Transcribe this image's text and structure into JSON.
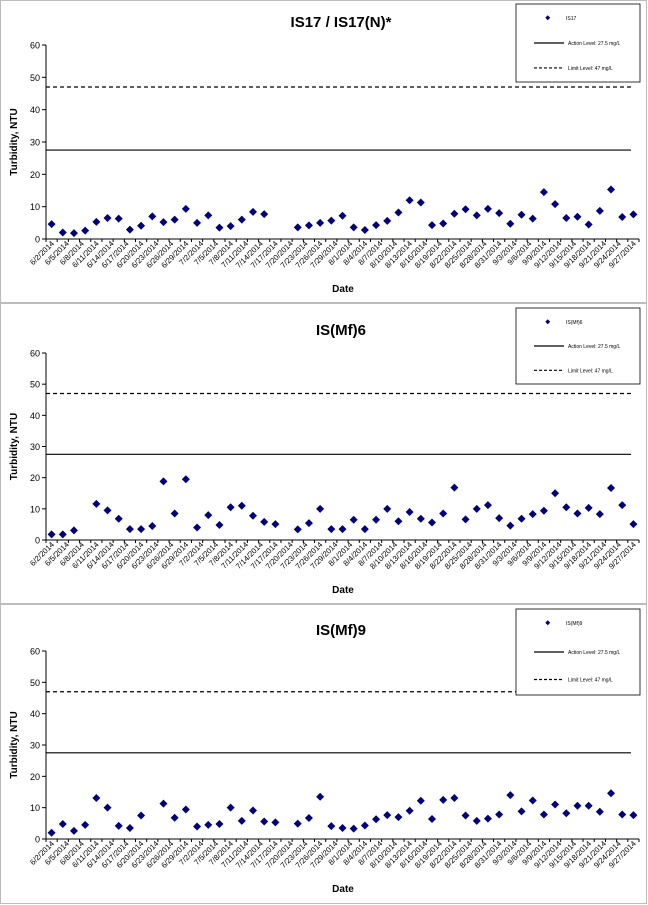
{
  "chart_data": [
    {
      "type": "scatter",
      "title": "IS17 / IS17(N)*",
      "xlabel": "Date",
      "ylabel": "Turbidity, NTU",
      "ylim": [
        0,
        60
      ],
      "yticks": [
        0,
        10,
        20,
        30,
        40,
        50,
        60
      ],
      "xticks": [
        "6/2/2014",
        "6/5/2014",
        "6/8/2014",
        "6/11/2014",
        "6/14/2014",
        "6/17/2014",
        "6/20/2014",
        "6/23/2014",
        "6/26/2014",
        "6/29/2014",
        "7/2/2014",
        "7/5/2014",
        "7/8/2014",
        "7/11/2014",
        "7/14/2014",
        "7/17/2014",
        "7/20/2014",
        "7/23/2014",
        "7/26/2014",
        "7/29/2014",
        "8/1/2014",
        "8/4/2014",
        "8/7/2014",
        "8/10/2014",
        "8/13/2014",
        "8/16/2014",
        "8/19/2014",
        "8/22/2014",
        "8/25/2014",
        "8/28/2014",
        "8/31/2014",
        "9/3/2014",
        "9/6/2014",
        "9/9/2014",
        "9/12/2014",
        "9/15/2014",
        "9/18/2014",
        "9/21/2014",
        "9/24/2014",
        "9/27/2014"
      ],
      "legend": [
        "IS17",
        "Action Level: 27.5 mg/L",
        "Limit Level: 47 mg/L"
      ],
      "grid": false,
      "action_level": 27.5,
      "limit_level": 47,
      "points": [
        [
          0,
          4.6
        ],
        [
          1,
          2
        ],
        [
          2,
          1.8
        ],
        [
          3,
          2.6
        ],
        [
          4,
          5.3
        ],
        [
          5,
          6.5
        ],
        [
          6,
          6.3
        ],
        [
          7,
          2.9
        ],
        [
          8,
          4.1
        ],
        [
          9,
          7
        ],
        [
          10,
          5.2
        ],
        [
          11,
          6
        ],
        [
          12,
          9.3
        ],
        [
          13,
          5
        ],
        [
          14,
          7.3
        ],
        [
          15,
          3.5
        ],
        [
          16,
          4
        ],
        [
          17,
          6
        ],
        [
          18,
          8.4
        ],
        [
          19,
          7.7
        ],
        [
          22,
          3.6
        ],
        [
          23,
          4.2
        ],
        [
          24,
          5
        ],
        [
          25,
          5.7
        ],
        [
          26,
          7.2
        ],
        [
          27,
          3.6
        ],
        [
          28,
          2.8
        ],
        [
          29,
          4.3
        ],
        [
          30,
          5.6
        ],
        [
          31,
          8.2
        ],
        [
          32,
          12
        ],
        [
          33,
          11.3
        ],
        [
          34,
          4.3
        ],
        [
          35,
          4.8
        ],
        [
          36,
          7.8
        ],
        [
          37,
          9.2
        ],
        [
          38,
          7.3
        ],
        [
          39,
          9.3
        ],
        [
          40,
          8
        ],
        [
          41,
          4.7
        ],
        [
          42,
          7.5
        ],
        [
          43,
          6.3
        ],
        [
          44,
          14.5
        ],
        [
          45,
          10.8
        ],
        [
          46,
          6.5
        ],
        [
          47,
          6.9
        ],
        [
          48,
          4.5
        ],
        [
          49,
          8.7
        ],
        [
          50,
          15.3
        ],
        [
          51,
          6.8
        ],
        [
          52,
          7.6
        ]
      ]
    },
    {
      "type": "scatter",
      "title": "IS(Mf)6",
      "xlabel": "Date",
      "ylabel": "Turbidity, NTU",
      "ylim": [
        0,
        60
      ],
      "yticks": [
        0,
        10,
        20,
        30,
        40,
        50,
        60
      ],
      "xticks": [
        "6/2/2014",
        "6/5/2014",
        "6/8/2014",
        "6/11/2014",
        "6/14/2014",
        "6/17/2014",
        "6/20/2014",
        "6/23/2014",
        "6/26/2014",
        "6/29/2014",
        "7/2/2014",
        "7/5/2014",
        "7/8/2014",
        "7/11/2014",
        "7/14/2014",
        "7/17/2014",
        "7/20/2014",
        "7/23/2014",
        "7/26/2014",
        "7/29/2014",
        "8/1/2014",
        "8/4/2014",
        "8/7/2014",
        "8/10/2014",
        "8/13/2014",
        "8/16/2014",
        "8/19/2014",
        "8/22/2014",
        "8/25/2014",
        "8/28/2014",
        "8/31/2014",
        "9/3/2014",
        "9/6/2014",
        "9/9/2014",
        "9/12/2014",
        "9/15/2014",
        "9/18/2014",
        "9/21/2014",
        "9/24/2014",
        "9/27/2014"
      ],
      "legend": [
        "IS(Mf)6",
        "Action Level: 27.5 mg/L",
        "Limit Level: 47 mg/L"
      ],
      "grid": false,
      "action_level": 27.5,
      "limit_level": 47,
      "points": [
        [
          0,
          1.8
        ],
        [
          1,
          1.8
        ],
        [
          2,
          3.1
        ],
        [
          4,
          11.6
        ],
        [
          5,
          9.5
        ],
        [
          6,
          6.8
        ],
        [
          7,
          3.5
        ],
        [
          8,
          3.5
        ],
        [
          9,
          4.5
        ],
        [
          10,
          18.8
        ],
        [
          11,
          8.5
        ],
        [
          12,
          19.5
        ],
        [
          13,
          4
        ],
        [
          14,
          8
        ],
        [
          15,
          4.8
        ],
        [
          16,
          10.5
        ],
        [
          17,
          11
        ],
        [
          18,
          7.8
        ],
        [
          19,
          5.8
        ],
        [
          20,
          5.1
        ],
        [
          22,
          3.4
        ],
        [
          23,
          5.4
        ],
        [
          24,
          10
        ],
        [
          25,
          3.5
        ],
        [
          26,
          3.5
        ],
        [
          27,
          6.5
        ],
        [
          28,
          3.5
        ],
        [
          29,
          6.5
        ],
        [
          30,
          10
        ],
        [
          31,
          6
        ],
        [
          32,
          9
        ],
        [
          33,
          6.8
        ],
        [
          34,
          5.6
        ],
        [
          35,
          8.5
        ],
        [
          36,
          16.8
        ],
        [
          37,
          6.6
        ],
        [
          38,
          10
        ],
        [
          39,
          11.2
        ],
        [
          40,
          7
        ],
        [
          41,
          4.6
        ],
        [
          42,
          6.8
        ],
        [
          43,
          8.3
        ],
        [
          44,
          9.4
        ],
        [
          45,
          15
        ],
        [
          46,
          10.5
        ],
        [
          47,
          8.5
        ],
        [
          48,
          10.3
        ],
        [
          49,
          8.3
        ],
        [
          50,
          16.7
        ],
        [
          51,
          11.2
        ],
        [
          52,
          5.1
        ]
      ]
    },
    {
      "type": "scatter",
      "title": "IS(Mf)9",
      "xlabel": "Date",
      "ylabel": "Turbidity, NTU",
      "ylim": [
        0,
        60
      ],
      "yticks": [
        0,
        10,
        20,
        30,
        40,
        50,
        60
      ],
      "xticks": [
        "6/2/2014",
        "6/5/2014",
        "6/8/2014",
        "6/11/2014",
        "6/14/2014",
        "6/17/2014",
        "6/20/2014",
        "6/23/2014",
        "6/26/2014",
        "6/29/2014",
        "7/2/2014",
        "7/5/2014",
        "7/8/2014",
        "7/11/2014",
        "7/14/2014",
        "7/17/2014",
        "7/20/2014",
        "7/23/2014",
        "7/26/2014",
        "7/29/2014",
        "8/1/2014",
        "8/4/2014",
        "8/7/2014",
        "8/10/2014",
        "8/13/2014",
        "8/16/2014",
        "8/19/2014",
        "8/22/2014",
        "8/25/2014",
        "8/28/2014",
        "8/31/2014",
        "9/3/2014",
        "9/6/2014",
        "9/9/2014",
        "9/12/2014",
        "9/15/2014",
        "9/18/2014",
        "9/21/2014",
        "9/24/2014",
        "9/27/2014"
      ],
      "legend": [
        "IS(Mf)9",
        "Action Level: 27.5 mg/L",
        "Limit Level: 47 mg/L"
      ],
      "grid": false,
      "action_level": 27.5,
      "limit_level": 47,
      "points": [
        [
          0,
          2
        ],
        [
          1,
          4.8
        ],
        [
          2,
          2.6
        ],
        [
          3,
          4.5
        ],
        [
          4,
          13.1
        ],
        [
          5,
          10
        ],
        [
          6,
          4.2
        ],
        [
          7,
          3.5
        ],
        [
          8,
          7.5
        ],
        [
          10,
          11.3
        ],
        [
          11,
          6.8
        ],
        [
          12,
          9.4
        ],
        [
          13,
          4
        ],
        [
          14,
          4.5
        ],
        [
          15,
          4.8
        ],
        [
          16,
          10
        ],
        [
          17,
          5.8
        ],
        [
          18,
          9.1
        ],
        [
          19,
          5.6
        ],
        [
          20,
          5.3
        ],
        [
          22,
          4.9
        ],
        [
          23,
          6.7
        ],
        [
          24,
          13.5
        ],
        [
          25,
          4.1
        ],
        [
          26,
          3.5
        ],
        [
          27,
          3.3
        ],
        [
          28,
          4.3
        ],
        [
          29,
          6.3
        ],
        [
          30,
          7.6
        ],
        [
          31,
          7
        ],
        [
          32,
          9
        ],
        [
          33,
          12.2
        ],
        [
          34,
          6.4
        ],
        [
          35,
          12.5
        ],
        [
          36,
          13.1
        ],
        [
          37,
          7.5
        ],
        [
          38,
          5.8
        ],
        [
          39,
          6.5
        ],
        [
          40,
          7.8
        ],
        [
          41,
          14
        ],
        [
          42,
          8.8
        ],
        [
          43,
          12.3
        ],
        [
          44,
          7.8
        ],
        [
          45,
          11
        ],
        [
          46,
          8.2
        ],
        [
          47,
          10.6
        ],
        [
          48,
          10.6
        ],
        [
          49,
          8.7
        ],
        [
          50,
          14.6
        ],
        [
          51,
          7.8
        ],
        [
          52,
          7.6
        ]
      ]
    }
  ]
}
